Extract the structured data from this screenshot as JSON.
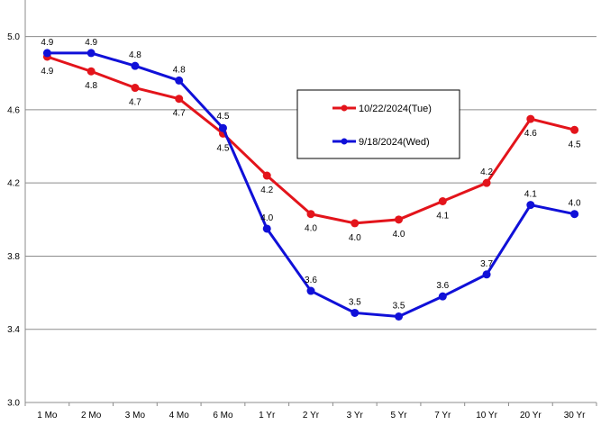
{
  "chart_data": {
    "type": "line",
    "categories": [
      "1 Mo",
      "2 Mo",
      "3 Mo",
      "4 Mo",
      "6 Mo",
      "1 Yr",
      "2 Yr",
      "3 Yr",
      "5 Yr",
      "7 Yr",
      "10 Yr",
      "20 Yr",
      "30 Yr"
    ],
    "series": [
      {
        "name": "10/22/2024(Tue)",
        "color": "#e3141b",
        "values": [
          4.89,
          4.81,
          4.72,
          4.66,
          4.47,
          4.24,
          4.03,
          3.98,
          4.0,
          4.1,
          4.2,
          4.55,
          4.49
        ],
        "labels": [
          "4.9",
          "4.8",
          "4.7",
          "4.7",
          "4.5",
          "4.2",
          "4.0",
          "4.0",
          "4.0",
          "4.1",
          "4.2",
          "4.6",
          "4.5"
        ]
      },
      {
        "name": "9/18/2024(Wed)",
        "color": "#1010d8",
        "values": [
          4.91,
          4.91,
          4.84,
          4.76,
          4.5,
          3.95,
          3.61,
          3.49,
          3.47,
          3.58,
          3.7,
          4.08,
          4.03
        ],
        "labels": [
          "4.9",
          "4.9",
          "4.8",
          "4.8",
          "4.5",
          "4.0",
          "3.6",
          "3.5",
          "3.5",
          "3.6",
          "3.7",
          "4.1",
          "4.0"
        ]
      }
    ],
    "yticks": [
      "3.0",
      "3.4",
      "3.8",
      "4.2",
      "4.6",
      "5.0"
    ],
    "ylim": [
      3.0,
      5.2
    ],
    "grid": true,
    "legend_placement": "center-right"
  }
}
